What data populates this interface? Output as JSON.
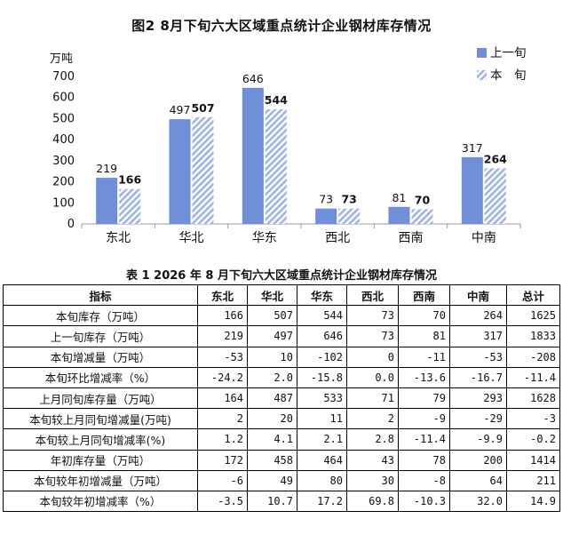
{
  "chart_data": {
    "type": "bar",
    "title": "图2   8月下旬六大区域重点统计企业钢材库存情况",
    "ylabel": "万吨",
    "xlabel": "",
    "ylim": [
      0,
      700
    ],
    "yticks": [
      0,
      100,
      200,
      300,
      400,
      500,
      600,
      700
    ],
    "categories": [
      "东北",
      "华北",
      "华东",
      "西北",
      "西南",
      "中南"
    ],
    "series": [
      {
        "name": "上一旬",
        "values": [
          219,
          497,
          646,
          73,
          81,
          317
        ],
        "color": "#6f8fd8",
        "pattern": "solid"
      },
      {
        "name": "本　旬",
        "values": [
          166,
          507,
          544,
          73,
          70,
          264
        ],
        "color": "#b4c6ee",
        "pattern": "diagonal-hatch"
      }
    ],
    "legend_position": "top-right",
    "grid": false
  },
  "table": {
    "title": "表 1   2026 年 8 月下旬六大区域重点统计企业钢材库存情况",
    "headers": [
      "指标",
      "东北",
      "华北",
      "华东",
      "西北",
      "西南",
      "中南",
      "总计"
    ],
    "rows": [
      [
        "本旬库存（万吨）",
        "166",
        "507",
        "544",
        "73",
        "70",
        "264",
        "1625"
      ],
      [
        "上一旬库存（万吨）",
        "219",
        "497",
        "646",
        "73",
        "81",
        "317",
        "1833"
      ],
      [
        "本旬增减量（万吨）",
        "-53",
        "10",
        "-102",
        "0",
        "-11",
        "-53",
        "-208"
      ],
      [
        "本旬环比增减率（%）",
        "-24.2",
        "2.0",
        "-15.8",
        "0.0",
        "-13.6",
        "-16.7",
        "-11.4"
      ],
      [
        "上月同旬库存量（万吨）",
        "164",
        "487",
        "533",
        "71",
        "79",
        "293",
        "1628"
      ],
      [
        "本旬较上月同旬增减量(万吨)",
        "2",
        "20",
        "11",
        "2",
        "-9",
        "-29",
        "-3"
      ],
      [
        "本旬较上月同旬增减率(%)",
        "1.2",
        "4.1",
        "2.1",
        "2.8",
        "-11.4",
        "-9.9",
        "-0.2"
      ],
      [
        "年初库存量（万吨）",
        "172",
        "458",
        "464",
        "43",
        "78",
        "200",
        "1414"
      ],
      [
        "本旬较年初增减量（万吨）",
        "-6",
        "49",
        "80",
        "30",
        "-8",
        "64",
        "211"
      ],
      [
        "本旬较年初增减率（%）",
        "-3.5",
        "10.7",
        "17.2",
        "69.8",
        "-10.3",
        "32.0",
        "14.9"
      ]
    ]
  }
}
